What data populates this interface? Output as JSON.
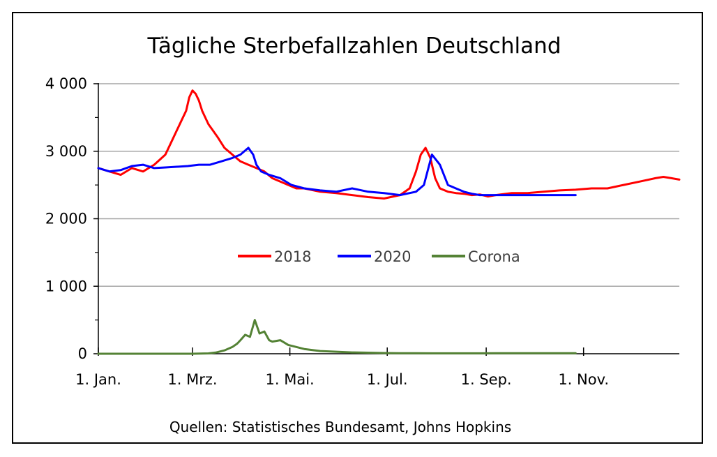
{
  "chart_data": {
    "type": "line",
    "title": "Tägliche Sterbefallzahlen Deutschland",
    "source": "Quellen: Statistisches Bundesamt, Johns Hopkins",
    "xlabel": "",
    "ylabel": "",
    "xlim": [
      1,
      365
    ],
    "ylim": [
      0,
      4000
    ],
    "x_ticks": [
      {
        "day": 1,
        "label": "1. Jan."
      },
      {
        "day": 60,
        "label": "1. Mrz."
      },
      {
        "day": 121,
        "label": "1. Mai."
      },
      {
        "day": 182,
        "label": "1. Jul."
      },
      {
        "day": 244,
        "label": "1. Sep."
      },
      {
        "day": 305,
        "label": "1. Nov."
      }
    ],
    "y_ticks": [
      {
        "value": 0,
        "label": "0"
      },
      {
        "value": 1000,
        "label": "1 000"
      },
      {
        "value": 2000,
        "label": "2 000"
      },
      {
        "value": 3000,
        "label": "3 000"
      },
      {
        "value": 4000,
        "label": "4 000"
      }
    ],
    "grid": "horizontal",
    "legend_position": "center",
    "series": [
      {
        "name": "2018",
        "color": "#ff0000",
        "x": [
          1,
          8,
          15,
          22,
          29,
          36,
          43,
          47,
          50,
          53,
          56,
          58,
          60,
          62,
          64,
          66,
          68,
          70,
          73,
          76,
          80,
          85,
          90,
          95,
          100,
          105,
          110,
          115,
          120,
          125,
          130,
          140,
          150,
          160,
          170,
          180,
          190,
          196,
          200,
          203,
          206,
          209,
          212,
          215,
          220,
          225,
          230,
          235,
          240,
          245,
          250,
          260,
          270,
          280,
          290,
          300,
          310,
          320,
          330,
          340,
          350,
          355,
          360,
          365
        ],
        "y": [
          2750,
          2700,
          2650,
          2750,
          2700,
          2800,
          2950,
          3150,
          3300,
          3450,
          3600,
          3800,
          3900,
          3850,
          3750,
          3600,
          3500,
          3400,
          3300,
          3200,
          3050,
          2950,
          2850,
          2800,
          2750,
          2700,
          2600,
          2550,
          2500,
          2450,
          2450,
          2400,
          2380,
          2350,
          2320,
          2300,
          2350,
          2450,
          2700,
          2950,
          3050,
          2900,
          2600,
          2450,
          2400,
          2380,
          2370,
          2350,
          2360,
          2330,
          2350,
          2380,
          2380,
          2400,
          2420,
          2430,
          2450,
          2450,
          2500,
          2550,
          2600,
          2620,
          2600,
          2580
        ]
      },
      {
        "name": "2020",
        "color": "#0000ff",
        "x": [
          1,
          8,
          15,
          22,
          29,
          36,
          43,
          50,
          57,
          64,
          71,
          78,
          85,
          90,
          95,
          98,
          100,
          103,
          108,
          115,
          122,
          130,
          140,
          150,
          160,
          170,
          180,
          190,
          200,
          205,
          210,
          215,
          220,
          225,
          230,
          235,
          240,
          245,
          250,
          255,
          260,
          265,
          270,
          275,
          280,
          285,
          290,
          295,
          300
        ],
        "y": [
          2750,
          2700,
          2720,
          2780,
          2800,
          2750,
          2760,
          2770,
          2780,
          2800,
          2800,
          2850,
          2900,
          2950,
          3050,
          2950,
          2800,
          2700,
          2650,
          2600,
          2500,
          2450,
          2420,
          2400,
          2450,
          2400,
          2380,
          2350,
          2400,
          2500,
          2950,
          2800,
          2500,
          2450,
          2400,
          2370,
          2350,
          2350,
          2350,
          2350,
          2350,
          2350,
          2350,
          2350,
          2350,
          2350,
          2350,
          2350,
          2350
        ]
      },
      {
        "name": "Corona",
        "color": "#548235",
        "x": [
          1,
          60,
          70,
          75,
          80,
          85,
          88,
          90,
          93,
          96,
          99,
          102,
          105,
          108,
          110,
          115,
          120,
          125,
          130,
          140,
          150,
          160,
          170,
          180,
          190,
          200,
          210,
          220,
          230,
          240,
          250,
          260,
          270,
          280,
          290,
          300
        ],
        "y": [
          0,
          0,
          5,
          20,
          50,
          100,
          150,
          200,
          280,
          250,
          500,
          300,
          330,
          200,
          180,
          200,
          130,
          100,
          70,
          40,
          30,
          20,
          15,
          10,
          8,
          7,
          6,
          6,
          6,
          6,
          7,
          8,
          8,
          8,
          8,
          8
        ]
      }
    ]
  }
}
